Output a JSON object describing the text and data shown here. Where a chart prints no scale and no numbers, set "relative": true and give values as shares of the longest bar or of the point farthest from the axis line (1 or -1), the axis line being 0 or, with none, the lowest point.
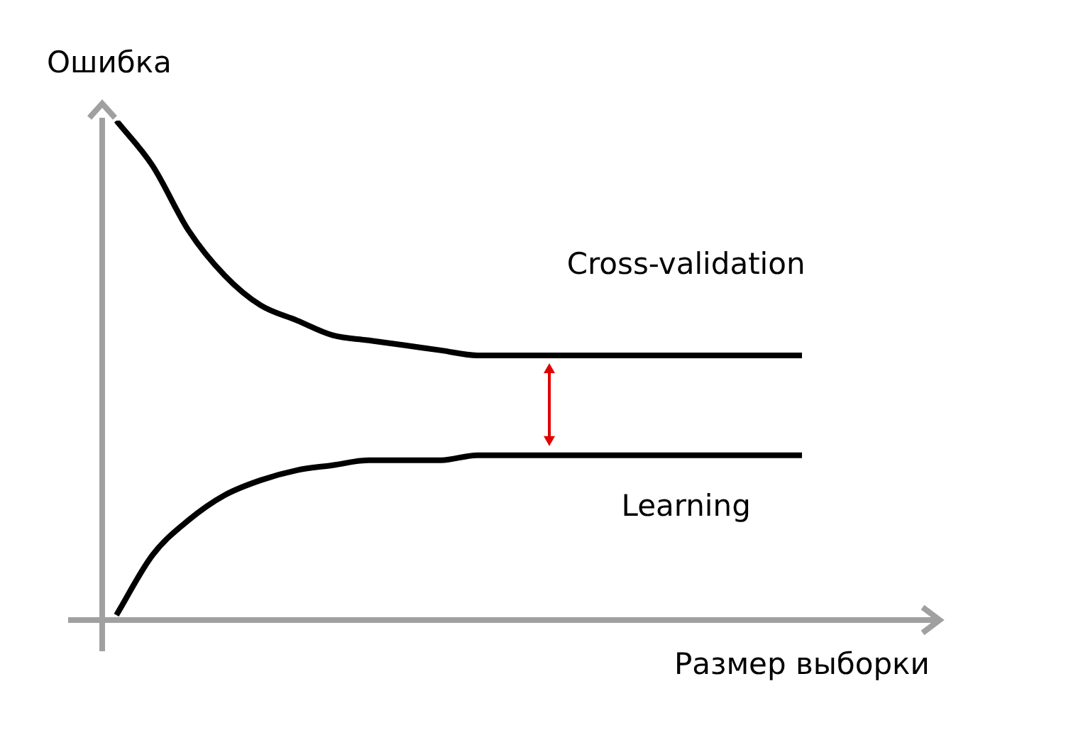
{
  "chart_data": {
    "type": "line",
    "relative": true,
    "xlabel": "Размер выборки",
    "ylabel": "Ошибка",
    "marker": "none",
    "categories": [
      null,
      null,
      null,
      null,
      null,
      null,
      null,
      null,
      null,
      null,
      null,
      null,
      null,
      null,
      null,
      null,
      null,
      null,
      null,
      null
    ],
    "series": [
      {
        "name": "Cross-validation",
        "color": "#000000",
        "values": [
          1.0,
          0.91,
          0.78,
          0.69,
          0.63,
          0.6,
          0.57,
          0.56,
          0.55,
          0.54,
          0.53,
          0.53,
          0.53,
          0.53,
          0.53,
          0.53,
          0.53,
          0.53,
          0.53,
          0.53
        ]
      },
      {
        "name": "Learning",
        "color": "#000000",
        "values": [
          0.01,
          0.13,
          0.2,
          0.25,
          0.28,
          0.3,
          0.31,
          0.32,
          0.32,
          0.32,
          0.33,
          0.33,
          0.33,
          0.33,
          0.33,
          0.33,
          0.33,
          0.33,
          0.33,
          0.33
        ]
      }
    ]
  }
}
